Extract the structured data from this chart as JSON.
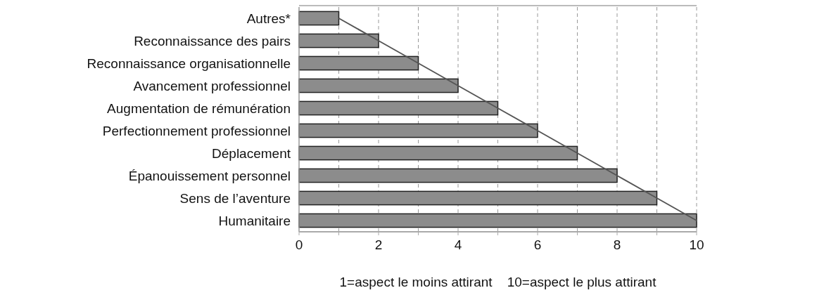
{
  "chart_data": {
    "type": "bar",
    "orientation": "horizontal",
    "categories": [
      "Autres*",
      "Reconnaissance des pairs",
      "Reconnaissance organisationnelle",
      "Avancement professionnel",
      "Augmentation de rémunération",
      "Perfectionnement professionnel",
      "Déplacement",
      "Épanouissement personnel",
      "Sens de l’aventure",
      "Humanitaire"
    ],
    "series": [
      {
        "color": "#8c8c8c",
        "values": [
          1,
          2,
          3,
          4,
          5,
          6,
          7,
          8,
          9,
          10
        ]
      },
      {
        "type": "line",
        "color": "#555555",
        "values": [
          1,
          2,
          3,
          4,
          5,
          6,
          7,
          8,
          9,
          10
        ]
      }
    ],
    "xlim": [
      0,
      10
    ],
    "xticks": [
      0,
      {
        "value": 1,
        "label": null
      },
      2,
      {
        "value": 3,
        "label": null
      },
      4,
      {
        "value": 5,
        "label": null
      },
      6,
      {
        "value": 7,
        "label": null
      },
      8,
      {
        "value": 9,
        "label": null
      },
      10
    ],
    "grid": "x",
    "xlabel": "1=aspect le moins attirant    10=aspect le plus attirant"
  }
}
